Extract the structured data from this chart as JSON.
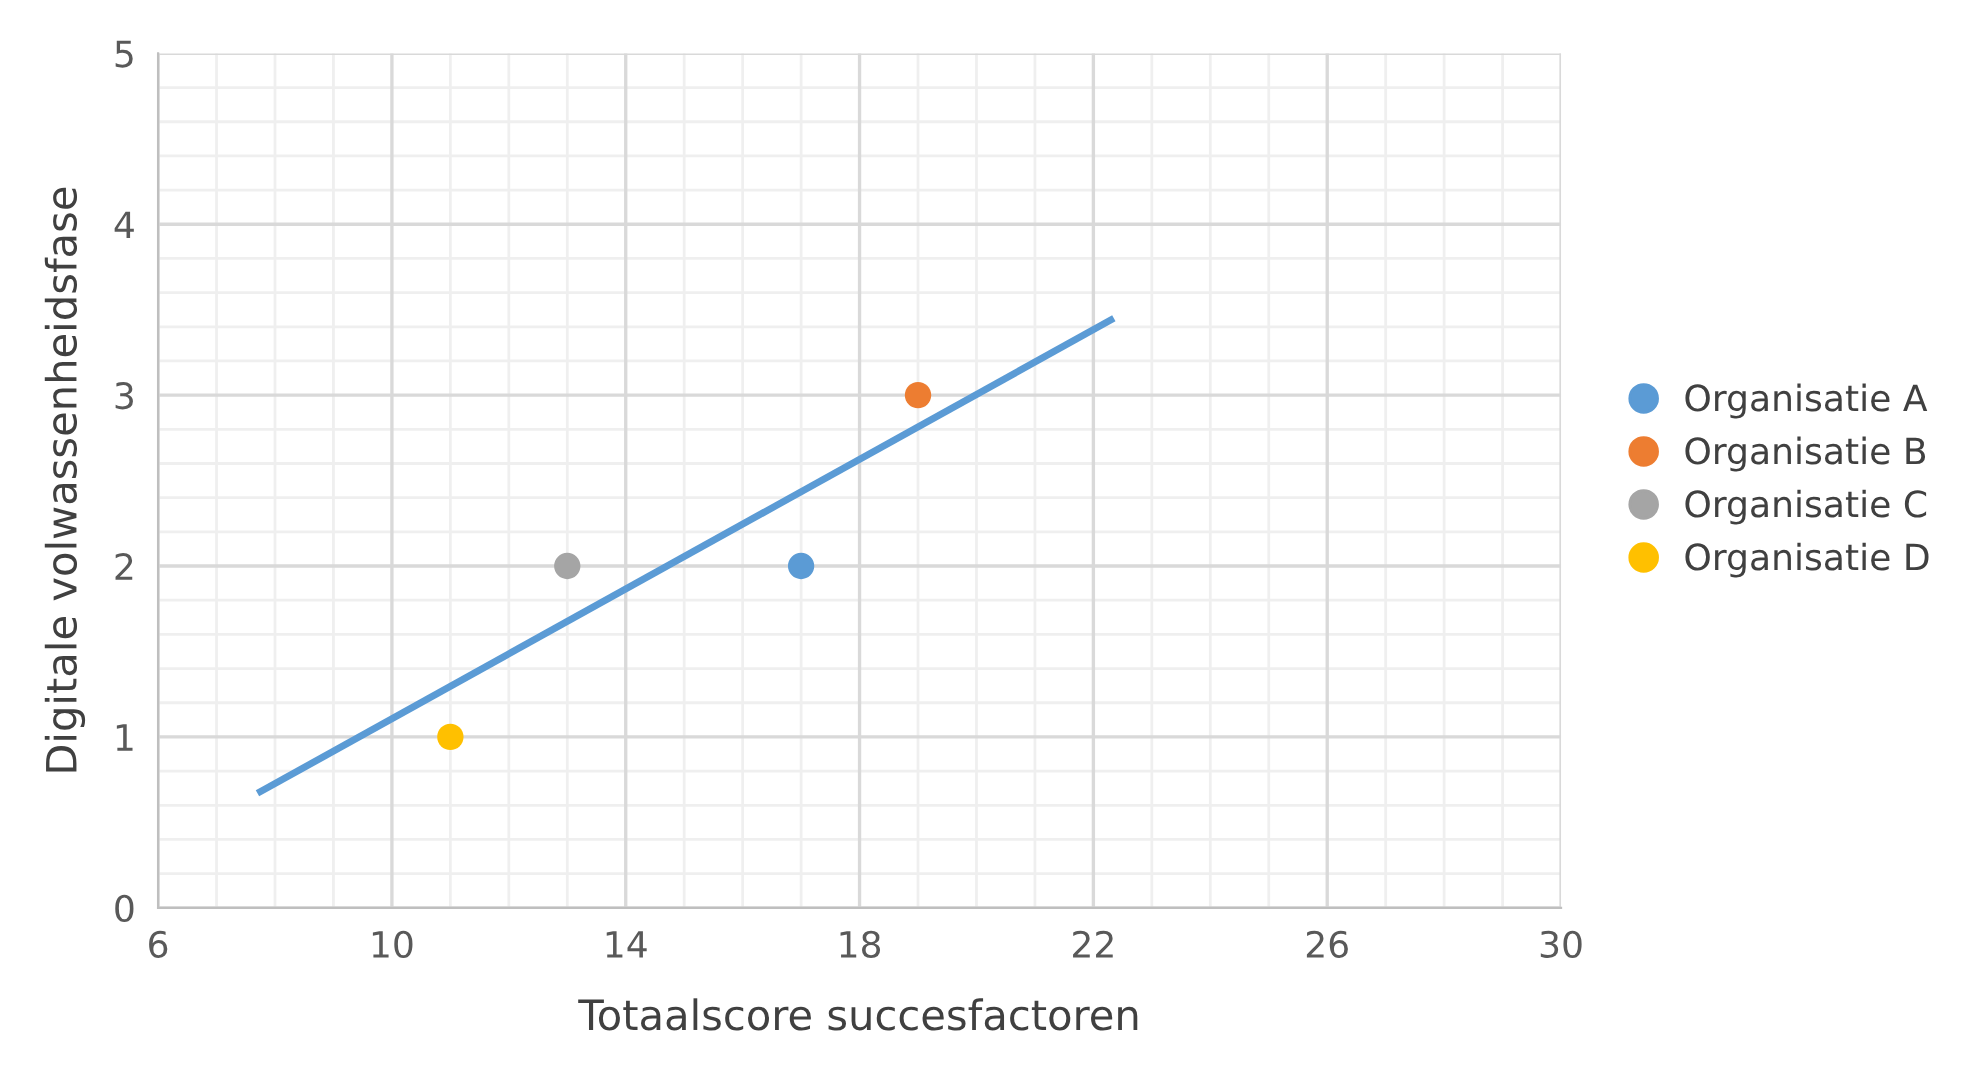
{
  "chart_data": {
    "type": "scatter",
    "xlabel": "Totaalscore succesfactoren",
    "ylabel": "Digitale volwassenheidsfase",
    "xlim": [
      6,
      30
    ],
    "xticks": [
      6,
      10,
      14,
      18,
      22,
      26,
      30
    ],
    "ylim": [
      0,
      5
    ],
    "yticks": [
      0,
      1,
      2,
      3,
      4,
      5
    ],
    "grid": true,
    "legend": "right",
    "marker": "circle",
    "series": [
      {
        "name": "Organisatie A",
        "color": "#5b9bd5",
        "x": [
          17
        ],
        "values": [
          2
        ]
      },
      {
        "name": "Organisatie B",
        "color": "#ed7d31",
        "x": [
          19
        ],
        "values": [
          3
        ]
      },
      {
        "name": "Organisatie C",
        "color": "#a5a5a5",
        "x": [
          13
        ],
        "values": [
          2
        ]
      },
      {
        "name": "Organisatie D",
        "color": "#ffc000",
        "x": [
          11
        ],
        "values": [
          1
        ]
      },
      {
        "type": "line",
        "marker": "none",
        "color": "#5b9bd5",
        "x": [
          7.7,
          22.35
        ],
        "values": [
          0.67,
          3.45
        ]
      }
    ]
  }
}
